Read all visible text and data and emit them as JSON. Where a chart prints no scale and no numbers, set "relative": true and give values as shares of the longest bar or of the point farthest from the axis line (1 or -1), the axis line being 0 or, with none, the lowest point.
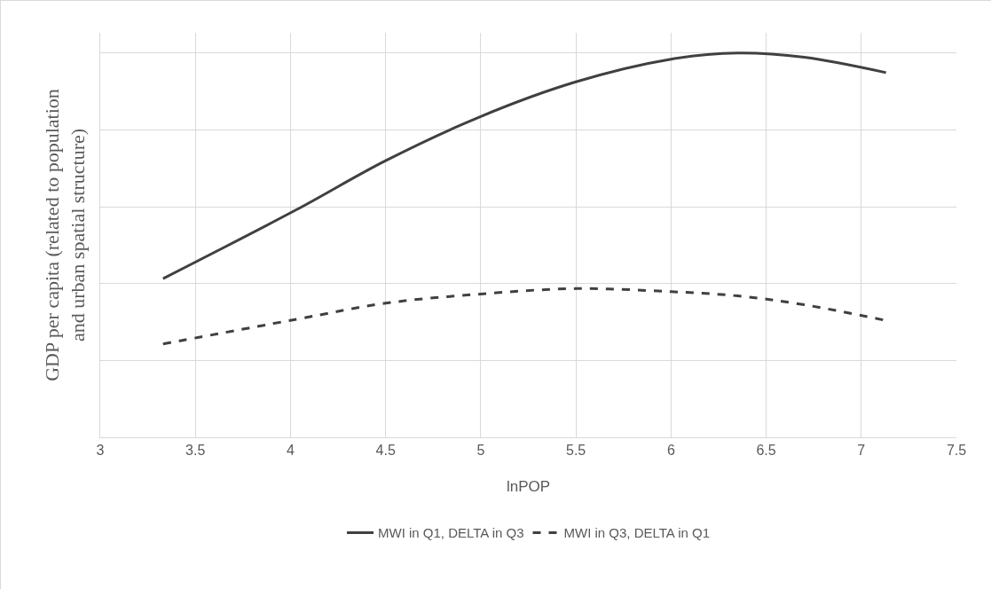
{
  "chart_data": {
    "type": "line",
    "relative": true,
    "xlabel": "lnPOP",
    "ylabel": "GDP per capita (related to population and urban spatial structure)",
    "xlim": [
      3,
      7.5
    ],
    "xticks": [
      3,
      3.5,
      4,
      4.5,
      5,
      5.5,
      6,
      6.5,
      7,
      7.5
    ],
    "grid": true,
    "legend": "bottom",
    "marker": "none",
    "x": [
      3.33,
      4.03,
      4.5,
      5,
      5.5,
      6,
      6.35,
      6.7,
      7.13
    ],
    "series": [
      {
        "name": "MWI in Q1, DELTA in Q3",
        "color": "#404040",
        "line_style": "solid",
        "values": [
          0.413,
          0.592,
          0.72,
          0.835,
          0.925,
          0.984,
          1,
          0.989,
          0.949
        ]
      },
      {
        "name": "MWI in Q3, DELTA in Q1",
        "color": "#404040",
        "line_style": "dashed",
        "values": [
          0.243,
          0.307,
          0.349,
          0.373,
          0.387,
          0.379,
          0.368,
          0.345,
          0.304
        ]
      }
    ]
  }
}
